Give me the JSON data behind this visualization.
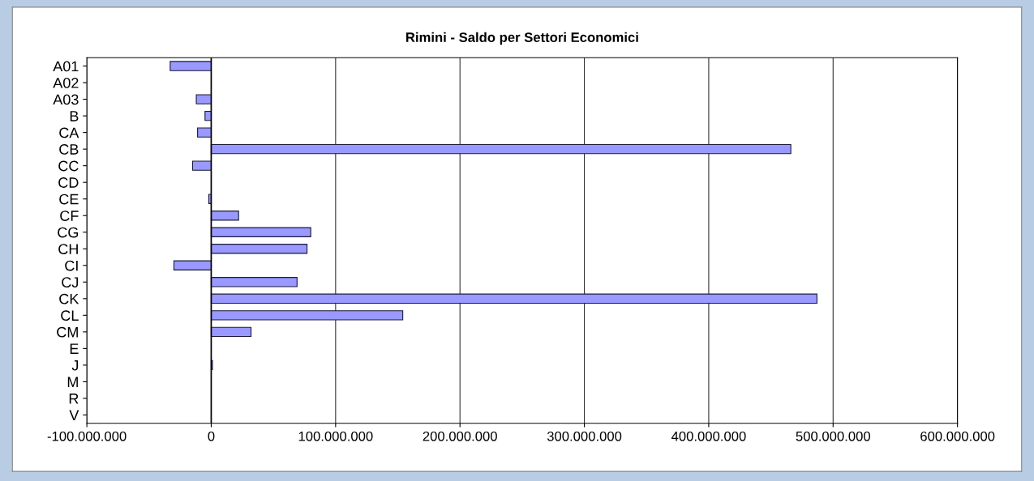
{
  "chart_data": {
    "type": "bar",
    "orientation": "horizontal",
    "title": "Rimini - Saldo per Settori Economici",
    "categories": [
      "A01",
      "A02",
      "A03",
      "B",
      "CA",
      "CB",
      "CC",
      "CD",
      "CE",
      "CF",
      "CG",
      "CH",
      "CI",
      "CJ",
      "CK",
      "CL",
      "CM",
      "E",
      "J",
      "M",
      "R",
      "V"
    ],
    "values": [
      -33000000,
      0,
      -12000000,
      -5000000,
      -11000000,
      466000000,
      -15000000,
      0,
      -2000000,
      22000000,
      80000000,
      77000000,
      -30000000,
      69000000,
      487000000,
      154000000,
      32000000,
      0,
      1000000,
      0,
      0,
      0
    ],
    "color": "#9999ff",
    "xlim": [
      -100000000,
      600000000
    ],
    "xticks": [
      {
        "value": -100000000,
        "label": "-100.000.000"
      },
      0,
      {
        "value": 100000000,
        "label": "100.000.000"
      },
      {
        "value": 200000000,
        "label": "200.000.000"
      },
      {
        "value": 300000000,
        "label": "300.000.000"
      },
      {
        "value": 400000000,
        "label": "400.000.000"
      },
      {
        "value": 500000000,
        "label": "500.000.000"
      },
      {
        "value": 600000000,
        "label": "600.000.000"
      }
    ],
    "grid": "x",
    "legend": false
  }
}
